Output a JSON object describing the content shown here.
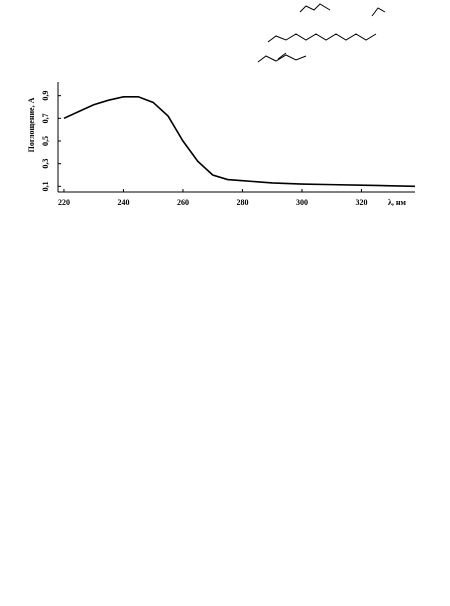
{
  "chart_data": {
    "type": "line",
    "y_label": "Поглощение, А",
    "x_label": "λ, нм",
    "x": [
      220,
      225,
      230,
      235,
      240,
      245,
      250,
      255,
      260,
      265,
      270,
      275,
      280,
      290,
      300,
      310,
      320,
      330,
      338
    ],
    "series": [
      {
        "color": "#000000",
        "values": [
          0.7,
          0.76,
          0.82,
          0.86,
          0.89,
          0.89,
          0.84,
          0.72,
          0.5,
          0.32,
          0.2,
          0.16,
          0.15,
          0.13,
          0.12,
          0.115,
          0.11,
          0.105,
          0.1
        ]
      }
    ],
    "xlim": [
      218,
      338
    ],
    "ylim": [
      0.05,
      0.95
    ],
    "xticks": [
      220,
      240,
      260,
      280,
      300,
      320
    ],
    "yticks": [
      {
        "value": 0.1,
        "label": "0,1"
      },
      {
        "value": 0.3,
        "label": "0,3"
      },
      {
        "value": 0.5,
        "label": "0,5"
      },
      {
        "value": 0.7,
        "label": "0,7"
      },
      {
        "value": 0.9,
        "label": "0,9"
      }
    ],
    "grid": false
  }
}
